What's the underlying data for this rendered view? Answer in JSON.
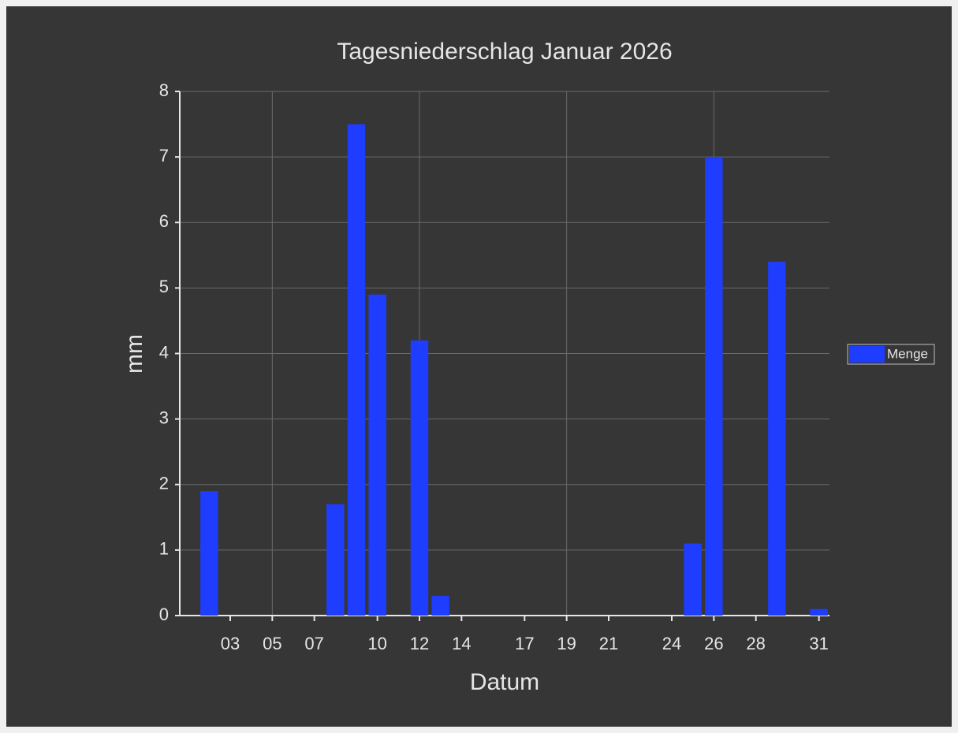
{
  "chart_data": {
    "type": "bar",
    "title": "Tagesniederschlag Januar 2026",
    "xlabel": "Datum",
    "ylabel": "mm",
    "x": [
      2,
      8,
      9,
      10,
      12,
      13,
      25,
      26,
      29,
      31
    ],
    "series": [
      {
        "name": "Menge",
        "color": "#1f3dff",
        "values": [
          1.9,
          1.7,
          7.5,
          4.9,
          4.2,
          0.3,
          1.1,
          7.0,
          5.4,
          0.1
        ]
      }
    ],
    "xlim": [
      0.6,
      31.5
    ],
    "xticks": [
      {
        "value": 3,
        "label": "03"
      },
      {
        "value": 5,
        "label": "05"
      },
      {
        "value": 7,
        "label": "07"
      },
      10,
      12,
      14,
      17,
      19,
      21,
      24,
      26,
      28,
      31
    ],
    "x_grid": [
      5,
      12,
      19,
      26
    ],
    "ylim": [
      0,
      8
    ],
    "yticks": [
      0,
      1,
      2,
      3,
      4,
      5,
      6,
      7,
      8
    ],
    "grid": true,
    "legend": "right"
  }
}
